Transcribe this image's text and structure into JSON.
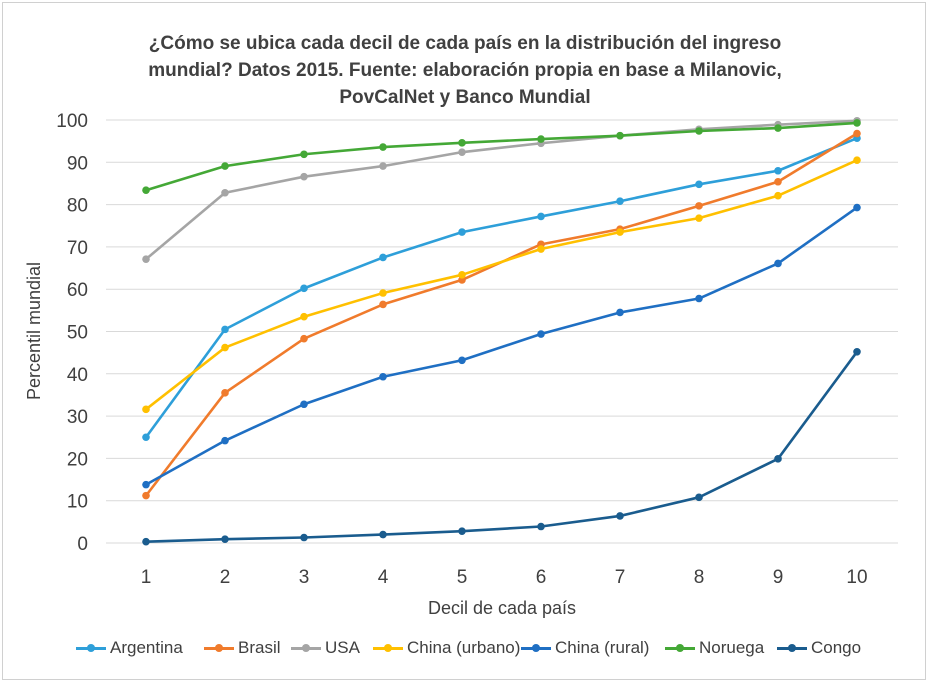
{
  "chart_data": {
    "type": "line",
    "title_lines": [
      "¿Cómo se ubica cada decil de cada país en la distribución del ingreso",
      "mundial? Datos 2015. Fuente: elaboración propia en base a Milanovic,",
      "PovCalNet y Banco Mundial"
    ],
    "xlabel": "Decil de cada país",
    "ylabel": "Percentil mundial",
    "x": [
      1,
      2,
      3,
      4,
      5,
      6,
      7,
      8,
      9,
      10
    ],
    "x_tick_labels": [
      "1",
      "2",
      "3",
      "4",
      "5",
      "6",
      "7",
      "8",
      "9",
      "10"
    ],
    "y_tick_labels": [
      "0",
      "10",
      "20",
      "30",
      "40",
      "50",
      "60",
      "70",
      "80",
      "90",
      "100"
    ],
    "ylim": [
      0,
      100
    ],
    "grid": true,
    "legend_position": "bottom",
    "series": [
      {
        "name": "Argentina",
        "color": "#2e9fd9",
        "values": [
          25,
          50.5,
          60.2,
          67.5,
          73.5,
          77.2,
          80.8,
          84.8,
          88,
          95.7
        ]
      },
      {
        "name": "Brasil",
        "color": "#f07b2c",
        "values": [
          11.2,
          35.5,
          48.3,
          56.4,
          62.2,
          70.6,
          74.2,
          79.7,
          85.4,
          96.8
        ]
      },
      {
        "name": "USA",
        "color": "#a5a5a5",
        "values": [
          67.1,
          82.8,
          86.6,
          89.1,
          92.4,
          94.5,
          96.3,
          97.8,
          98.9,
          99.8
        ]
      },
      {
        "name": "China (urbano)",
        "color": "#ffc000",
        "values": [
          31.6,
          46.2,
          53.5,
          59.1,
          63.4,
          69.5,
          73.5,
          76.8,
          82.1,
          90.5
        ]
      },
      {
        "name": "China (rural)",
        "color": "#1f6fc3",
        "values": [
          13.8,
          24.2,
          32.8,
          39.3,
          43.2,
          49.4,
          54.5,
          57.8,
          66.1,
          79.3
        ]
      },
      {
        "name": "Noruega",
        "color": "#44a836",
        "values": [
          83.4,
          89.1,
          91.9,
          93.6,
          94.6,
          95.5,
          96.3,
          97.4,
          98.1,
          99.3
        ]
      },
      {
        "name": "Congo",
        "color": "#1a5c8e",
        "values": [
          0.3,
          0.9,
          1.3,
          2,
          2.8,
          3.9,
          6.4,
          10.8,
          19.9,
          45.2
        ]
      }
    ]
  }
}
